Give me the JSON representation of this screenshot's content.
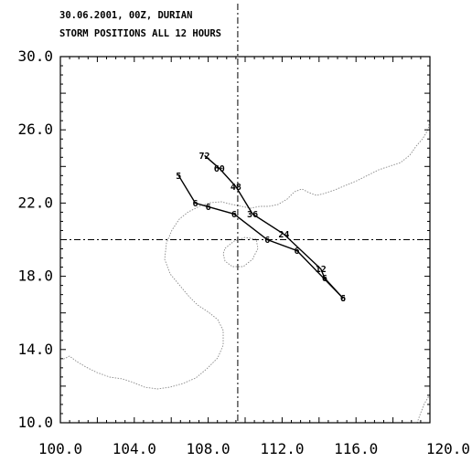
{
  "header": {
    "line1": "30.06.2001, 00Z, DURIAN",
    "line2": "STORM POSITIONS ALL 12 HOURS"
  },
  "map": {
    "lon_range": [
      100,
      120
    ],
    "lat_range": [
      10,
      30
    ],
    "x_ticks": [
      "100.0",
      "104.0",
      "108.0",
      "112.0",
      "116.0",
      "120.0"
    ],
    "y_ticks": [
      "30.0",
      "26.0",
      "22.0",
      "18.0",
      "14.0",
      "10.0"
    ],
    "reference_lon": 109.6,
    "reference_lat": 20.0,
    "colors": {
      "track": "#000000",
      "coast": "#888888",
      "frame": "#000000"
    }
  },
  "tracks": [
    {
      "points": [
        {
          "lon": 115.3,
          "lat": 16.8,
          "label": "6"
        },
        {
          "lon": 114.3,
          "lat": 17.9,
          "label": "6"
        },
        {
          "lon": 114.1,
          "lat": 18.4,
          "label": "12"
        },
        {
          "lon": 112.1,
          "lat": 20.3,
          "label": "24"
        },
        {
          "lon": 110.4,
          "lat": 21.4,
          "label": "36"
        },
        {
          "lon": 109.5,
          "lat": 22.9,
          "label": "48"
        },
        {
          "lon": 108.6,
          "lat": 23.9,
          "label": "60"
        },
        {
          "lon": 107.8,
          "lat": 24.6,
          "label": "72"
        }
      ]
    },
    {
      "points": [
        {
          "lon": 115.3,
          "lat": 16.8,
          "label": "6"
        },
        {
          "lon": 112.8,
          "lat": 19.4,
          "label": "6"
        },
        {
          "lon": 111.2,
          "lat": 20.0,
          "label": "6"
        },
        {
          "lon": 109.4,
          "lat": 21.4,
          "label": "6"
        },
        {
          "lon": 108.0,
          "lat": 21.8,
          "label": "6"
        },
        {
          "lon": 107.3,
          "lat": 22.0,
          "label": "6"
        },
        {
          "lon": 106.4,
          "lat": 23.5,
          "label": "5"
        }
      ]
    }
  ]
}
